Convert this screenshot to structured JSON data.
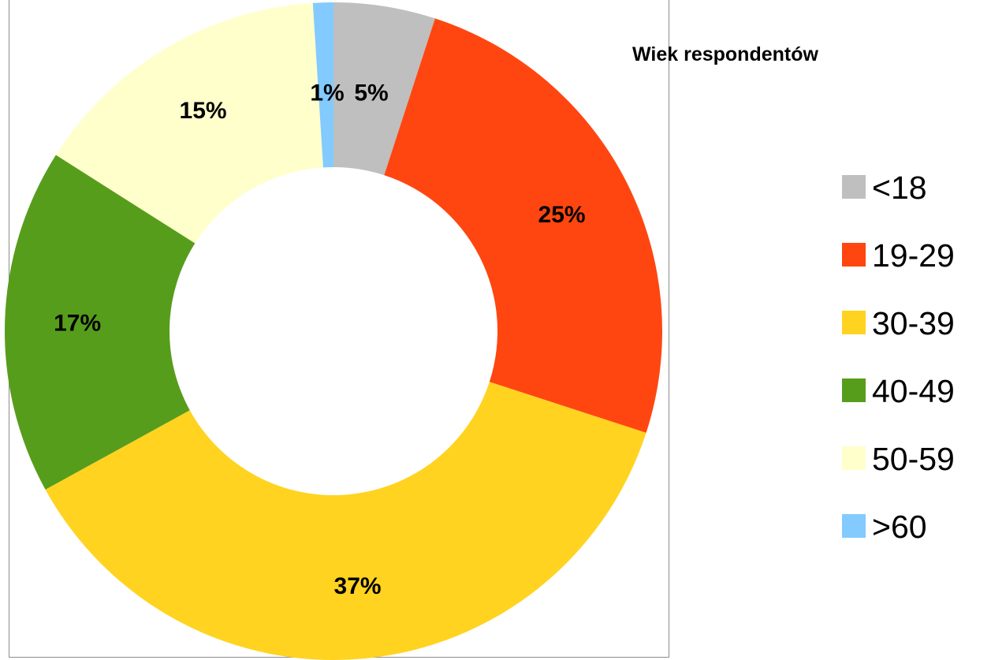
{
  "chart_data": {
    "type": "pie",
    "subtype": "doughnut",
    "title": "Wiek respondentów",
    "categories": [
      "<18",
      "19-29",
      "30-39",
      "40-49",
      "50-59",
      ">60"
    ],
    "values": [
      5,
      25,
      37,
      17,
      15,
      1
    ],
    "labels": [
      "5%",
      "25%",
      "37%",
      "17%",
      "15%",
      "1%"
    ],
    "colors": [
      "#BFBFBF",
      "#FF4611",
      "#FFD320",
      "#579D1C",
      "#FFFFCC",
      "#83CAFF"
    ],
    "legend_position": "right",
    "start_angle_deg": 0,
    "direction": "clockwise"
  }
}
